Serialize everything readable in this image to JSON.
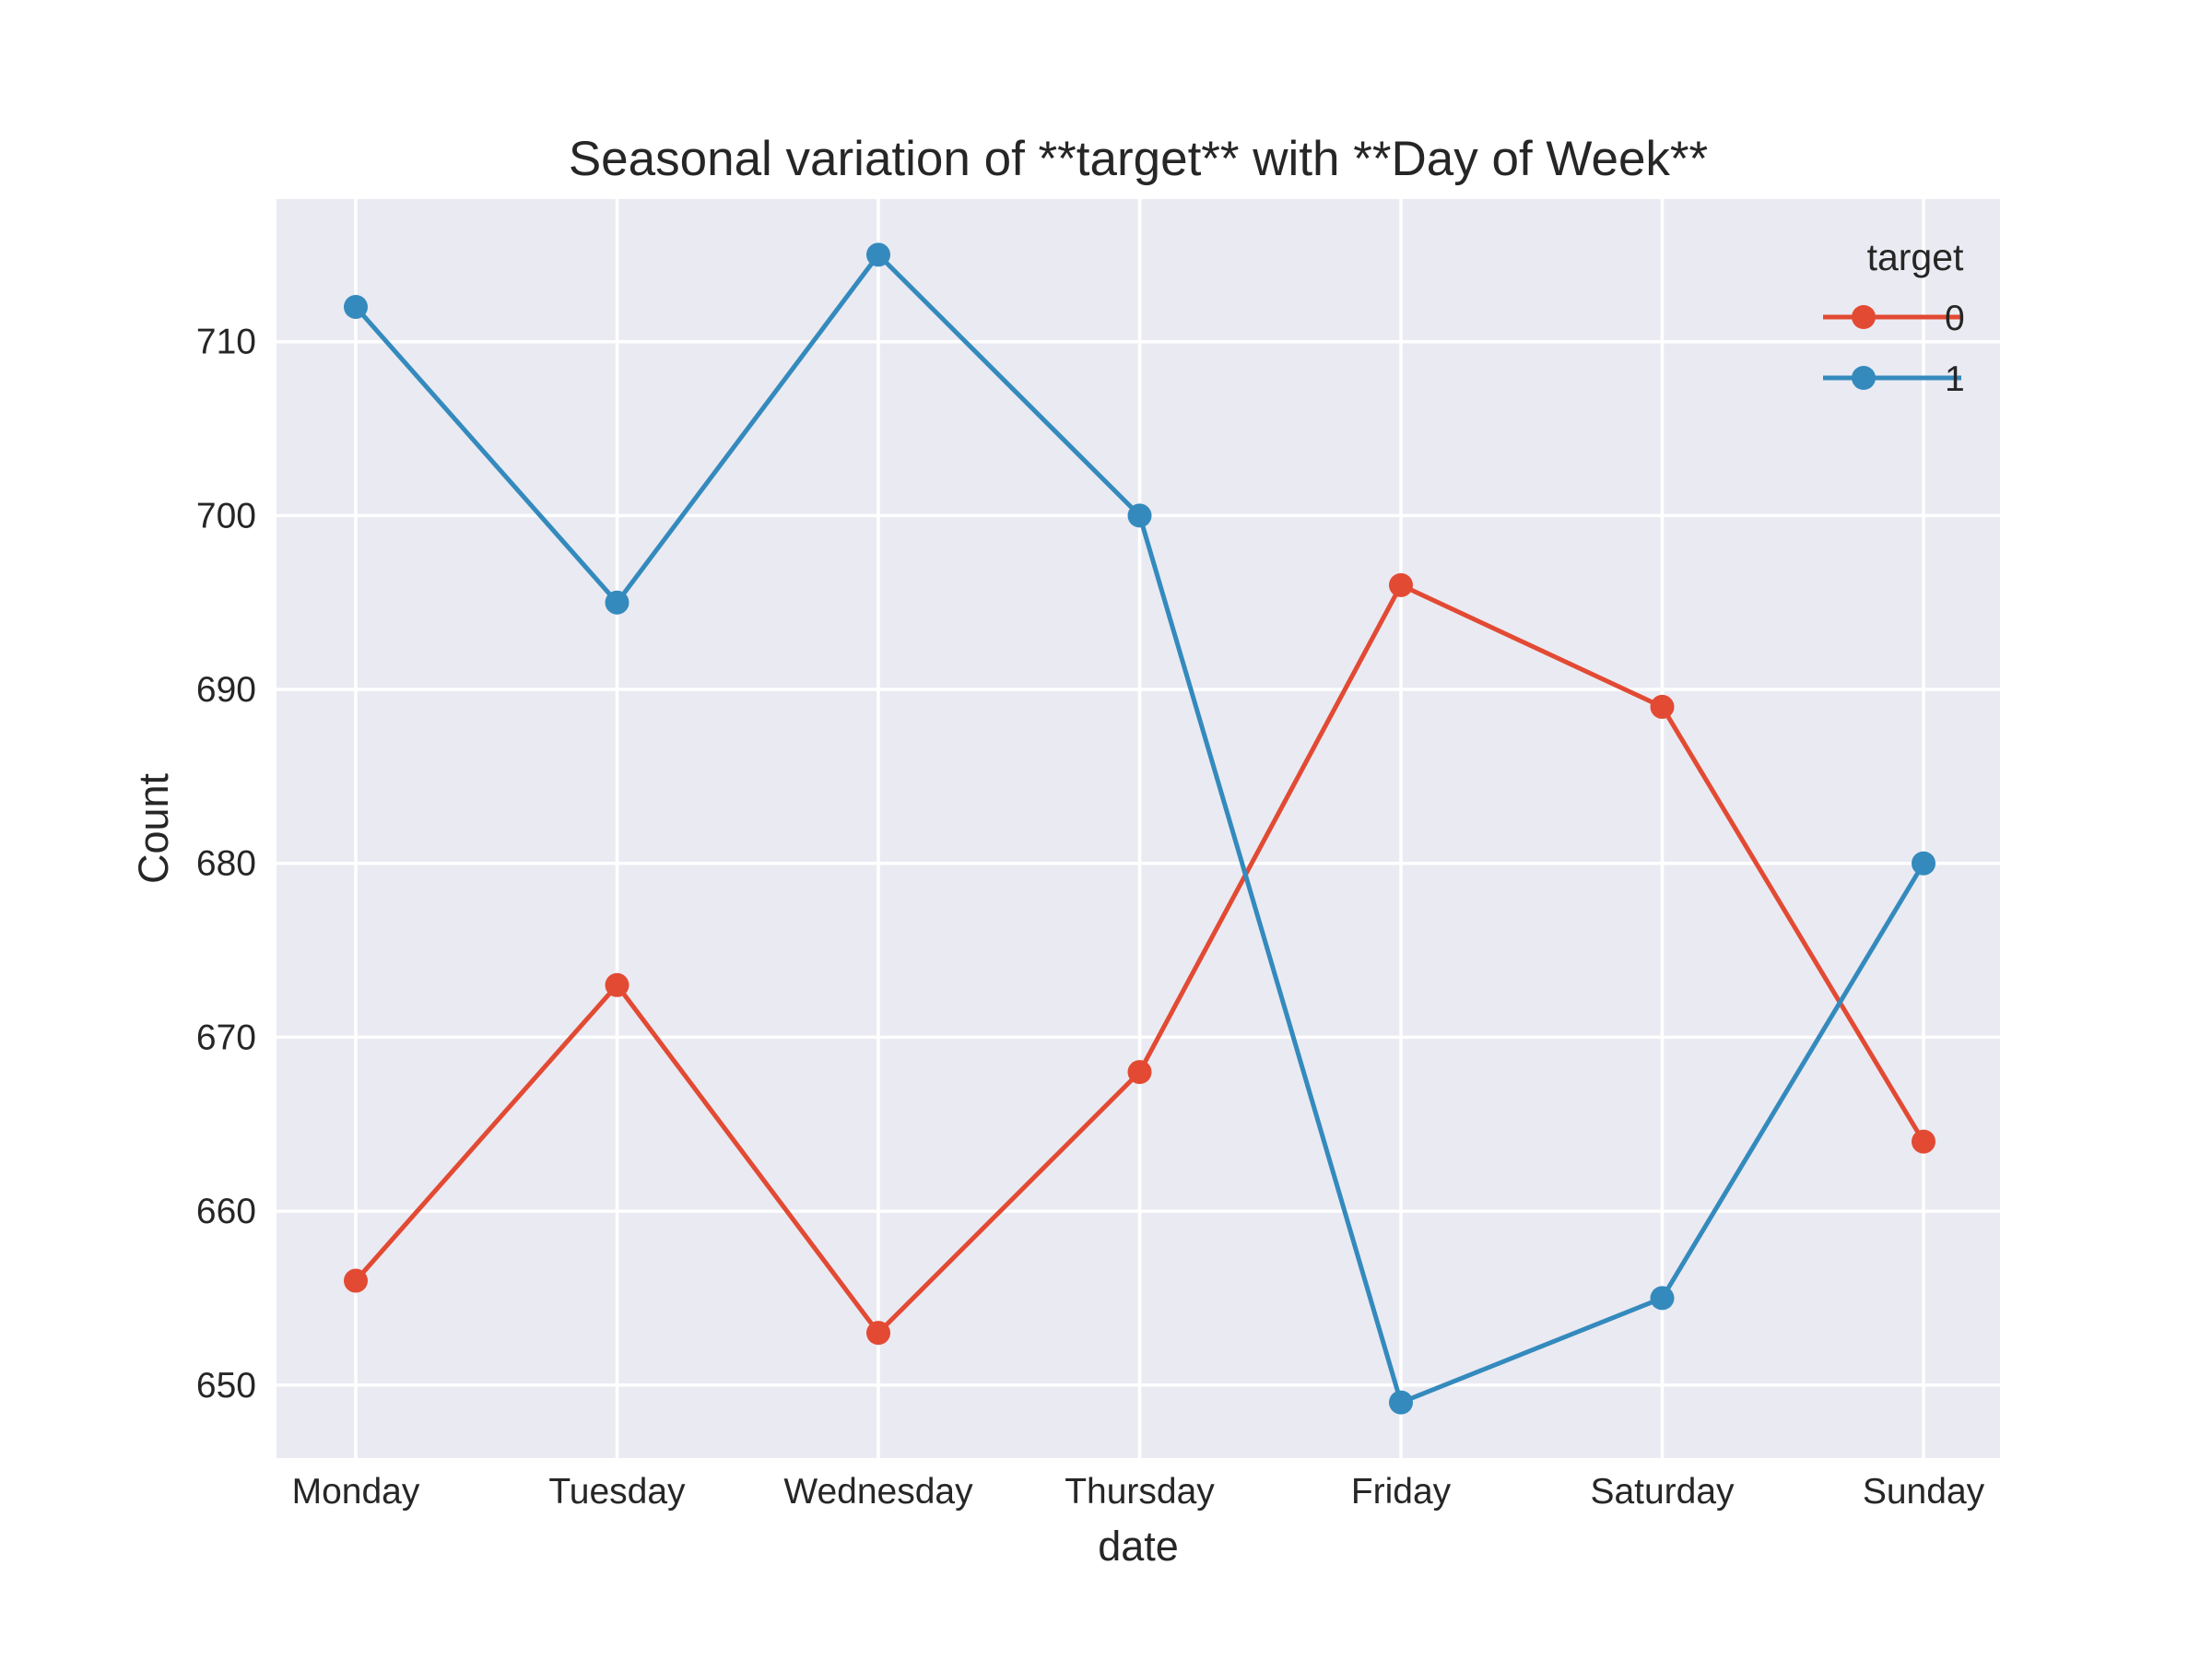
{
  "chart_data": {
    "type": "line",
    "title": "Seasonal variation of **target** with **Day of Week**",
    "xlabel": "date",
    "ylabel": "Count",
    "categories": [
      "Monday",
      "Tuesday",
      "Wednesday",
      "Thursday",
      "Friday",
      "Saturday",
      "Sunday"
    ],
    "ylim": [
      645.8,
      718.2
    ],
    "yticks": [
      650,
      660,
      670,
      680,
      690,
      700,
      710
    ],
    "grid": true,
    "legend": {
      "title": "target",
      "placement": "top-right"
    },
    "series": [
      {
        "name": "0",
        "color": "#E24A33",
        "values": [
          656,
          673,
          653,
          668,
          696,
          689,
          664
        ]
      },
      {
        "name": "1",
        "color": "#348ABD",
        "values": [
          712,
          695,
          715,
          700,
          649,
          655,
          680
        ]
      }
    ]
  },
  "colors": {
    "plot_background": "#EAEAF2",
    "grid": "#FFFFFF",
    "text": "#262626"
  }
}
